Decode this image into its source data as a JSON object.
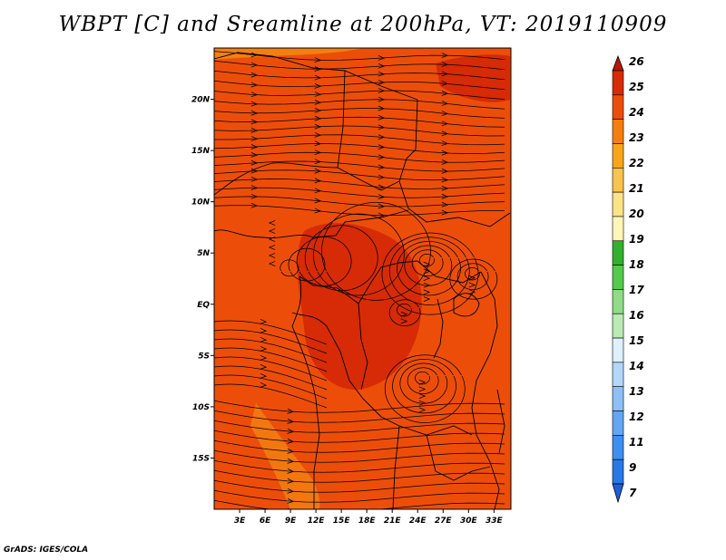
{
  "page": {
    "title": "WBPT [C] and Sreamline at 200hPa, VT: 2019110909",
    "credit": "GrADS: IGES/COLA"
  },
  "chart_data": {
    "type": "heatmap",
    "title": "WBPT [C] and Sreamline at 200hPa, VT: 2019110909",
    "variable": "Wet-bulb potential temperature [C] with streamlines",
    "level": "200hPa",
    "valid_time": "2019110909",
    "x_range": [
      0,
      35
    ],
    "y_range": [
      -20,
      25
    ],
    "x_ticks": [
      3,
      6,
      9,
      12,
      15,
      18,
      21,
      24,
      27,
      30,
      33
    ],
    "x_tick_labels": [
      "3E",
      "6E",
      "9E",
      "12E",
      "15E",
      "18E",
      "21E",
      "24E",
      "27E",
      "30E",
      "33E"
    ],
    "y_ticks": [
      20,
      15,
      10,
      5,
      0,
      -5,
      -10,
      -15
    ],
    "y_tick_labels": [
      "20N",
      "15N",
      "10N",
      "5N",
      "EQ",
      "5S",
      "10S",
      "15S"
    ],
    "colorbar": {
      "labels": [
        "7",
        "9",
        "11",
        "12",
        "13",
        "14",
        "15",
        "16",
        "17",
        "18",
        "19",
        "20",
        "21",
        "22",
        "23",
        "24",
        "25",
        "26"
      ],
      "colors": [
        "#1f5fd6",
        "#2a78e6",
        "#3d8ff0",
        "#63a6f4",
        "#8cc0f7",
        "#b3d7fb",
        "#def0fc",
        "#b9ebb3",
        "#8fdb86",
        "#55c94c",
        "#33b02d",
        "#fff6b8",
        "#fde387",
        "#f9c34f",
        "#f7a51a",
        "#f47f10",
        "#ec4e0a",
        "#d62b06",
        "#b81804"
      ]
    },
    "field_colors": {
      "base": "#ec4e0a",
      "warm_core": "#d62b06",
      "cool_strip": "#f47f10",
      "warm_cap": "#f47f10"
    },
    "legend_position": "right"
  }
}
